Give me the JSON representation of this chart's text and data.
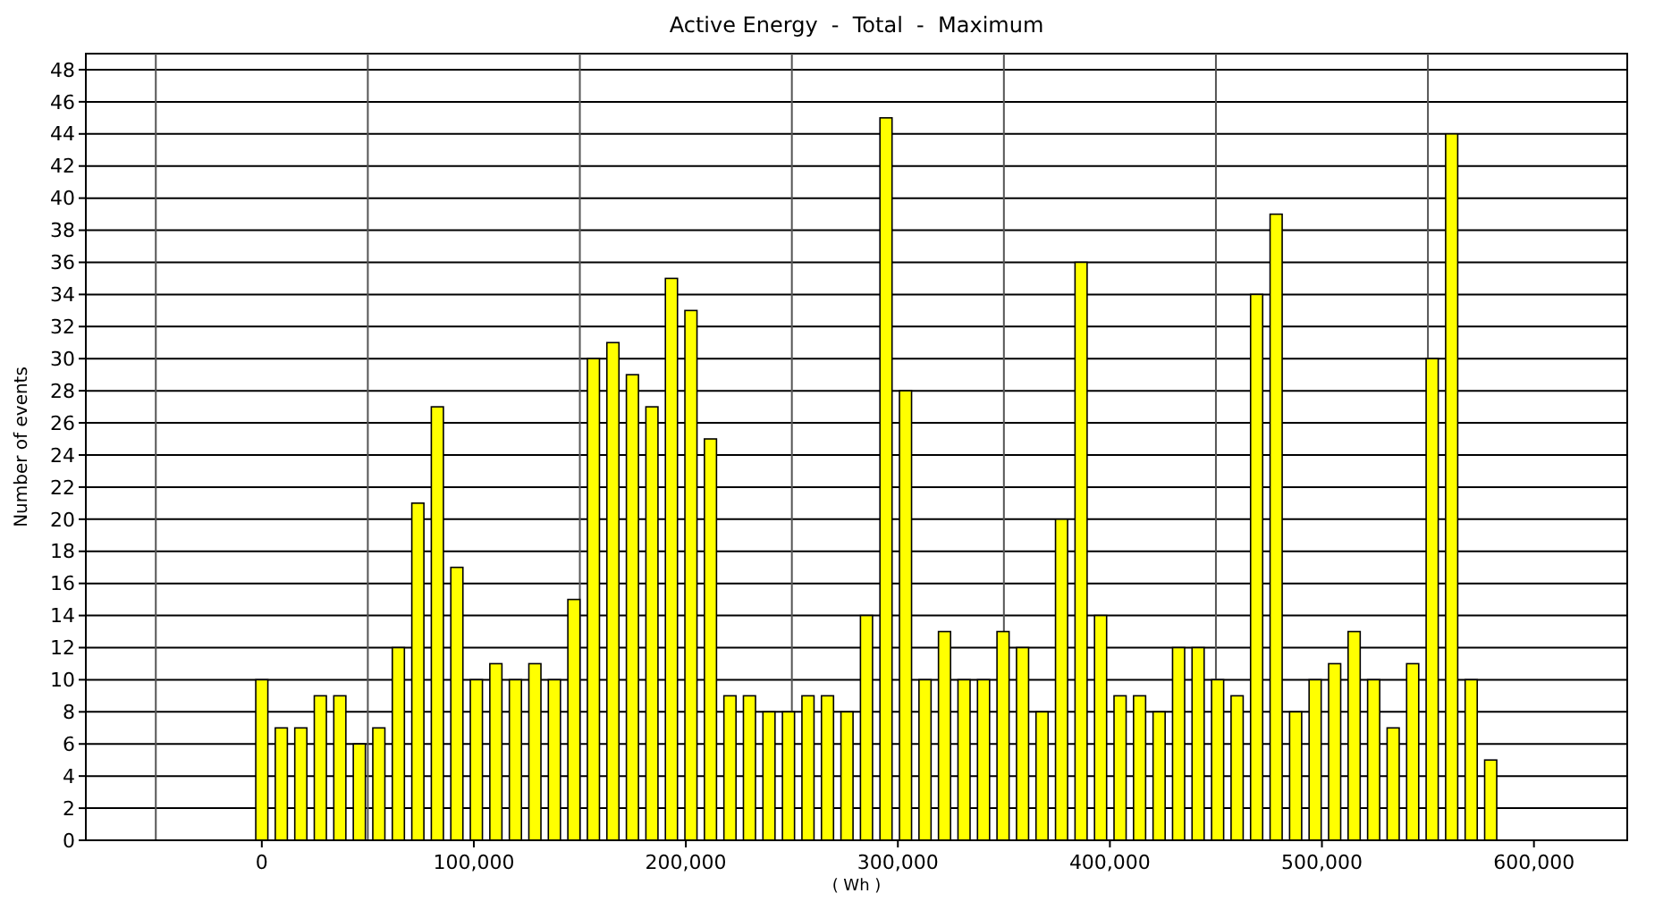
{
  "chart_data": {
    "type": "bar",
    "title": "Active Energy  -  Total  -  Maximum",
    "xlabel": "( Wh )",
    "ylabel": "Number of events",
    "x": [
      0,
      9200,
      18400,
      27600,
      36800,
      46000,
      55200,
      64400,
      73600,
      82800,
      92000,
      101200,
      110400,
      119600,
      128800,
      138000,
      147200,
      156400,
      165600,
      174800,
      184000,
      193200,
      202400,
      211600,
      220800,
      230000,
      239200,
      248400,
      257600,
      266800,
      276000,
      285200,
      294400,
      303600,
      312800,
      322000,
      331200,
      340400,
      349600,
      358800,
      368000,
      377200,
      386400,
      395600,
      404800,
      414000,
      423200,
      432400,
      441600,
      450800,
      460000,
      469200,
      478400,
      487600,
      496800,
      506000,
      515200,
      524400,
      533600,
      542800,
      552000,
      561200,
      570400,
      579600
    ],
    "values": [
      10,
      7,
      7,
      9,
      9,
      6,
      7,
      12,
      21,
      27,
      17,
      10,
      11,
      10,
      11,
      10,
      15,
      30,
      31,
      29,
      27,
      35,
      33,
      25,
      9,
      9,
      8,
      8,
      9,
      9,
      8,
      14,
      45,
      28,
      10,
      13,
      10,
      10,
      13,
      12,
      8,
      20,
      36,
      14,
      9,
      9,
      8,
      12,
      12,
      10,
      9,
      34,
      39,
      8,
      10,
      11,
      13,
      10,
      7,
      11,
      30,
      44,
      10,
      5
    ],
    "color": "#ffff00",
    "xlim": [
      -83000,
      644000
    ],
    "xticks": [
      {
        "value": -50000,
        "label": null
      },
      {
        "value": 0,
        "label": "0"
      },
      {
        "value": 50000,
        "label": null
      },
      {
        "value": 100000,
        "label": "100,000"
      },
      {
        "value": 150000,
        "label": null
      },
      {
        "value": 200000,
        "label": "200,000"
      },
      {
        "value": 250000,
        "label": null
      },
      {
        "value": 300000,
        "label": "300,000"
      },
      {
        "value": 350000,
        "label": null
      },
      {
        "value": 400000,
        "label": "400,000"
      },
      {
        "value": 450000,
        "label": null
      },
      {
        "value": 500000,
        "label": "500,000"
      },
      {
        "value": 550000,
        "label": null
      },
      {
        "value": 600000,
        "label": "600,000"
      }
    ],
    "ylim": [
      0,
      49
    ],
    "yticks": [
      0,
      2,
      4,
      6,
      8,
      10,
      12,
      14,
      16,
      18,
      20,
      22,
      24,
      26,
      28,
      30,
      32,
      34,
      36,
      38,
      40,
      42,
      44,
      46,
      48
    ],
    "grid": true
  }
}
